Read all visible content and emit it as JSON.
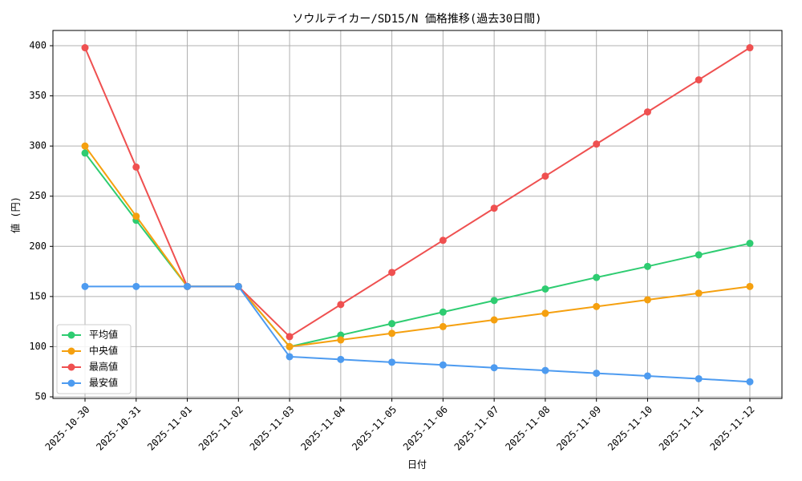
{
  "chart_data": {
    "type": "line",
    "title": "ソウルテイカー/SD15/N 価格推移(過去30日間)",
    "x_label": "日付",
    "y_label": "値 (円)",
    "categories": [
      "2025-10-30",
      "2025-10-31",
      "2025-11-01",
      "2025-11-02",
      "2025-11-03",
      "2025-11-04",
      "2025-11-05",
      "2025-11-06",
      "2025-11-07",
      "2025-11-08",
      "2025-11-09",
      "2025-11-10",
      "2025-11-11",
      "2025-11-12"
    ],
    "series": [
      {
        "name": "平均値",
        "color": "#2ecc71",
        "values": [
          293,
          226,
          160,
          160,
          100,
          111.5,
          123,
          134.5,
          146,
          157.5,
          169,
          180,
          191.5,
          203
        ]
      },
      {
        "name": "中央値",
        "color": "#f5a00f",
        "values": [
          300,
          230,
          160,
          160,
          100,
          106.7,
          113.3,
          120,
          126.7,
          133.3,
          140,
          146.7,
          153.3,
          160
        ]
      },
      {
        "name": "最高値",
        "color": "#ef5050",
        "values": [
          398,
          279,
          160,
          160,
          110,
          142,
          174,
          206,
          238,
          270,
          302,
          334,
          366,
          398
        ]
      },
      {
        "name": "最安値",
        "color": "#4d9bf0",
        "values": [
          160,
          160,
          160,
          160,
          90,
          87.3,
          84.5,
          81.8,
          79,
          76.3,
          73.5,
          70.8,
          68,
          65
        ]
      }
    ],
    "ylim": [
      48.4,
      415.2
    ],
    "yticks": [
      50,
      100,
      150,
      200,
      250,
      300,
      350,
      400
    ],
    "grid": true,
    "legend": "lower left"
  }
}
